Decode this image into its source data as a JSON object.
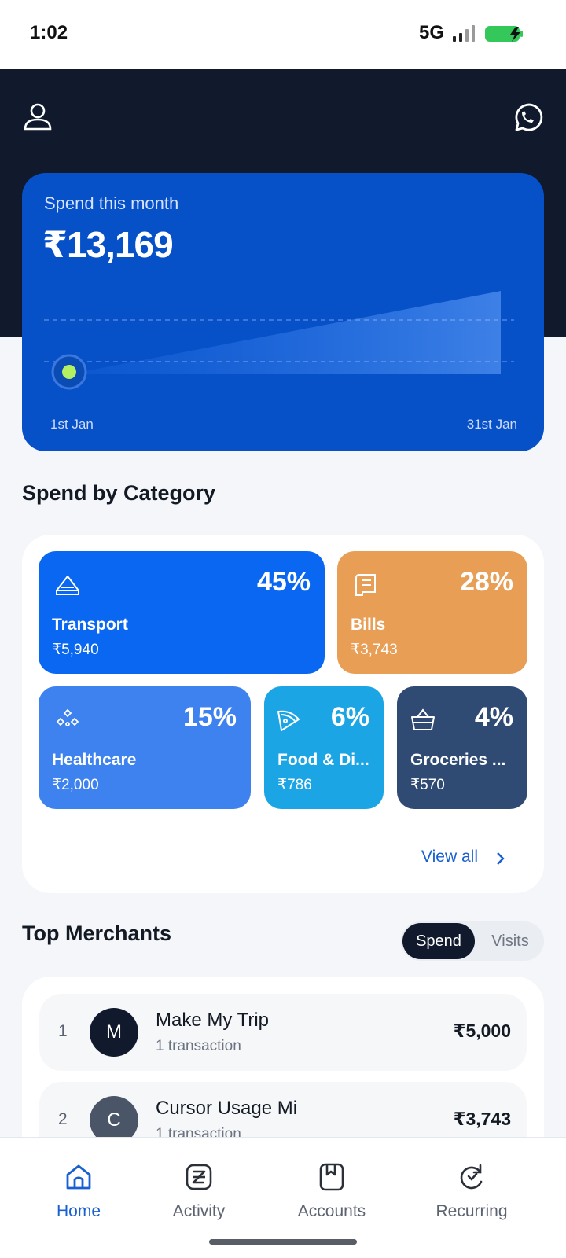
{
  "status_bar": {
    "time": "1:02",
    "network": "5G"
  },
  "icons": {
    "profile": "user-outline-icon",
    "whatsapp": "whatsapp-icon",
    "signal": "signal-bars-icon",
    "battery": "battery-charging-icon"
  },
  "spend_card": {
    "label": "Spend this month",
    "amount": "₹13,169",
    "start_label": "1st Jan",
    "end_label": "31st Jan",
    "current_marker_day": 1
  },
  "category_section": {
    "title": "Spend by Category",
    "view_all_label": "View all",
    "categories": [
      {
        "name": "Transport",
        "percent": "45%",
        "amount": "₹5,940",
        "color": "#0a67f2",
        "icon": "car-icon"
      },
      {
        "name": "Bills",
        "percent": "28%",
        "amount": "₹3,743",
        "color": "#e89e55",
        "icon": "receipt-icon"
      },
      {
        "name": "Healthcare",
        "percent": "15%",
        "amount": "₹2,000",
        "color": "#3d82ee",
        "icon": "health-icon"
      },
      {
        "name": "Food & Di...",
        "percent": "6%",
        "amount": "₹786",
        "color": "#1ca5e5",
        "icon": "pizza-icon"
      },
      {
        "name": "Groceries ...",
        "percent": "4%",
        "amount": "₹570",
        "color": "#2f4a73",
        "icon": "basket-icon"
      }
    ]
  },
  "merchants_section": {
    "title": "Top Merchants",
    "toggle": {
      "spend_label": "Spend",
      "visits_label": "Visits",
      "selected": "Spend"
    },
    "merchants": [
      {
        "rank": "1",
        "initial": "M",
        "name": "Make My Trip",
        "subtitle": "1 transaction",
        "amount": "₹5,000",
        "avatar_color": "#111a2c"
      },
      {
        "rank": "2",
        "initial": "C",
        "name": "Cursor Usage Mi",
        "subtitle": "1 transaction",
        "amount": "₹3,743",
        "avatar_color": "#4a5568"
      }
    ]
  },
  "bottom_nav": {
    "items": [
      {
        "label": "Home",
        "icon": "home-icon",
        "active": true
      },
      {
        "label": "Activity",
        "icon": "activity-icon",
        "active": false
      },
      {
        "label": "Accounts",
        "icon": "accounts-icon",
        "active": false
      },
      {
        "label": "Recurring",
        "icon": "recurring-icon",
        "active": false
      }
    ]
  }
}
